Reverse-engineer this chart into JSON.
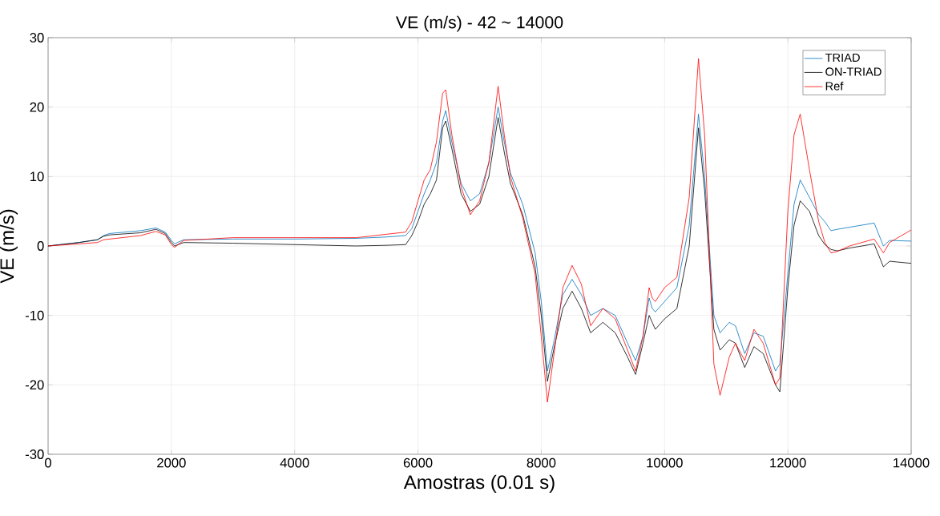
{
  "chart_data": {
    "type": "line",
    "title": "VE (m/s) - 42 ~ 14000",
    "xlabel": "Amostras (0.01 s)",
    "ylabel": "VE (m/s)",
    "x": [
      0,
      500,
      800,
      900,
      1000,
      1500,
      1750,
      1900,
      2000,
      2050,
      2200,
      3000,
      4000,
      5000,
      5500,
      5800,
      5900,
      6000,
      6100,
      6200,
      6300,
      6400,
      6450,
      6550,
      6700,
      6850,
      7000,
      7150,
      7300,
      7400,
      7500,
      7700,
      7900,
      8000,
      8100,
      8200,
      8350,
      8500,
      8650,
      8800,
      9000,
      9200,
      9400,
      9530,
      9650,
      9750,
      9800,
      9850,
      10000,
      10200,
      10400,
      10550,
      10650,
      10800,
      10900,
      11050,
      11150,
      11300,
      11450,
      11600,
      11800,
      11870,
      12000,
      12100,
      12200,
      12350,
      12500,
      12600,
      12700,
      12800,
      13000,
      13400,
      13550,
      13650,
      14000
    ],
    "series": [
      {
        "name": "TRIAD",
        "color": "#0072bd",
        "values": [
          0,
          0.5,
          0.9,
          1.5,
          1.8,
          2.2,
          2.6,
          2.0,
          0.8,
          0.3,
          0.9,
          1.0,
          1.0,
          1.1,
          1.3,
          1.5,
          2.5,
          5,
          7.5,
          9.5,
          12,
          18,
          19.5,
          15,
          9,
          6.5,
          7.5,
          12,
          20,
          15,
          10.5,
          6,
          -1,
          -8,
          -18,
          -14,
          -7,
          -4.8,
          -7,
          -10,
          -9,
          -10,
          -14,
          -16.5,
          -13,
          -7.5,
          -9,
          -9.5,
          -8,
          -6,
          3,
          19,
          10,
          -10,
          -12.5,
          -11,
          -11.5,
          -15.5,
          -12.5,
          -13,
          -18,
          -17,
          -4,
          6,
          9.5,
          7,
          4.5,
          3.5,
          2.2,
          2.4,
          2.7,
          3.3,
          0,
          0.8,
          0.7
        ]
      },
      {
        "name": "ON-TRIAD",
        "color": "#000000",
        "values": [
          0,
          0.5,
          0.9,
          1.4,
          1.6,
          1.9,
          2.4,
          1.8,
          0.5,
          0,
          0.5,
          0.4,
          0.2,
          0,
          0.1,
          0.2,
          1.5,
          3.5,
          6,
          7.5,
          9.5,
          17,
          18,
          14,
          7.5,
          5,
          6,
          10,
          18.5,
          13.5,
          9,
          4.5,
          -3,
          -10,
          -19.5,
          -15,
          -9,
          -6.5,
          -9,
          -12.5,
          -11,
          -12.5,
          -16,
          -18.5,
          -14,
          -10,
          -11,
          -12,
          -10.5,
          -9,
          0,
          17,
          8,
          -12,
          -15,
          -13.5,
          -14,
          -17.5,
          -14.5,
          -15.5,
          -20,
          -21,
          -6,
          3,
          6.5,
          5,
          1.5,
          0.2,
          -0.5,
          -0.7,
          -0.3,
          0.3,
          -3,
          -2.2,
          -2.5
        ]
      },
      {
        "name": "Ref",
        "color": "#ff0000",
        "values": [
          0,
          0.3,
          0.5,
          0.9,
          1.0,
          1.5,
          2.1,
          1.6,
          0.2,
          -0.2,
          0.8,
          1.2,
          1.2,
          1.2,
          1.7,
          2.0,
          3.5,
          6.5,
          9.5,
          11,
          15,
          22,
          22.5,
          16,
          8.5,
          4.5,
          6.5,
          12,
          23,
          16,
          10,
          4,
          -4,
          -13,
          -22.5,
          -16,
          -6,
          -2.8,
          -5.5,
          -11.5,
          -9,
          -10.5,
          -15,
          -18,
          -13,
          -6,
          -7.5,
          -8,
          -6,
          -4.5,
          7,
          27,
          16,
          -17,
          -21.5,
          -16,
          -14,
          -16.5,
          -12,
          -14,
          -20,
          -19,
          5,
          16,
          19,
          11,
          3.5,
          0.5,
          -1,
          -0.8,
          0,
          1,
          -1,
          0.5,
          2.3
        ]
      }
    ],
    "xlim": [
      0,
      14000
    ],
    "ylim": [
      -30,
      30
    ],
    "xticks": [
      0,
      2000,
      4000,
      6000,
      8000,
      10000,
      12000,
      14000
    ],
    "yticks": [
      -30,
      -20,
      -10,
      0,
      10,
      20,
      30
    ],
    "grid": true,
    "legend": "top right"
  }
}
